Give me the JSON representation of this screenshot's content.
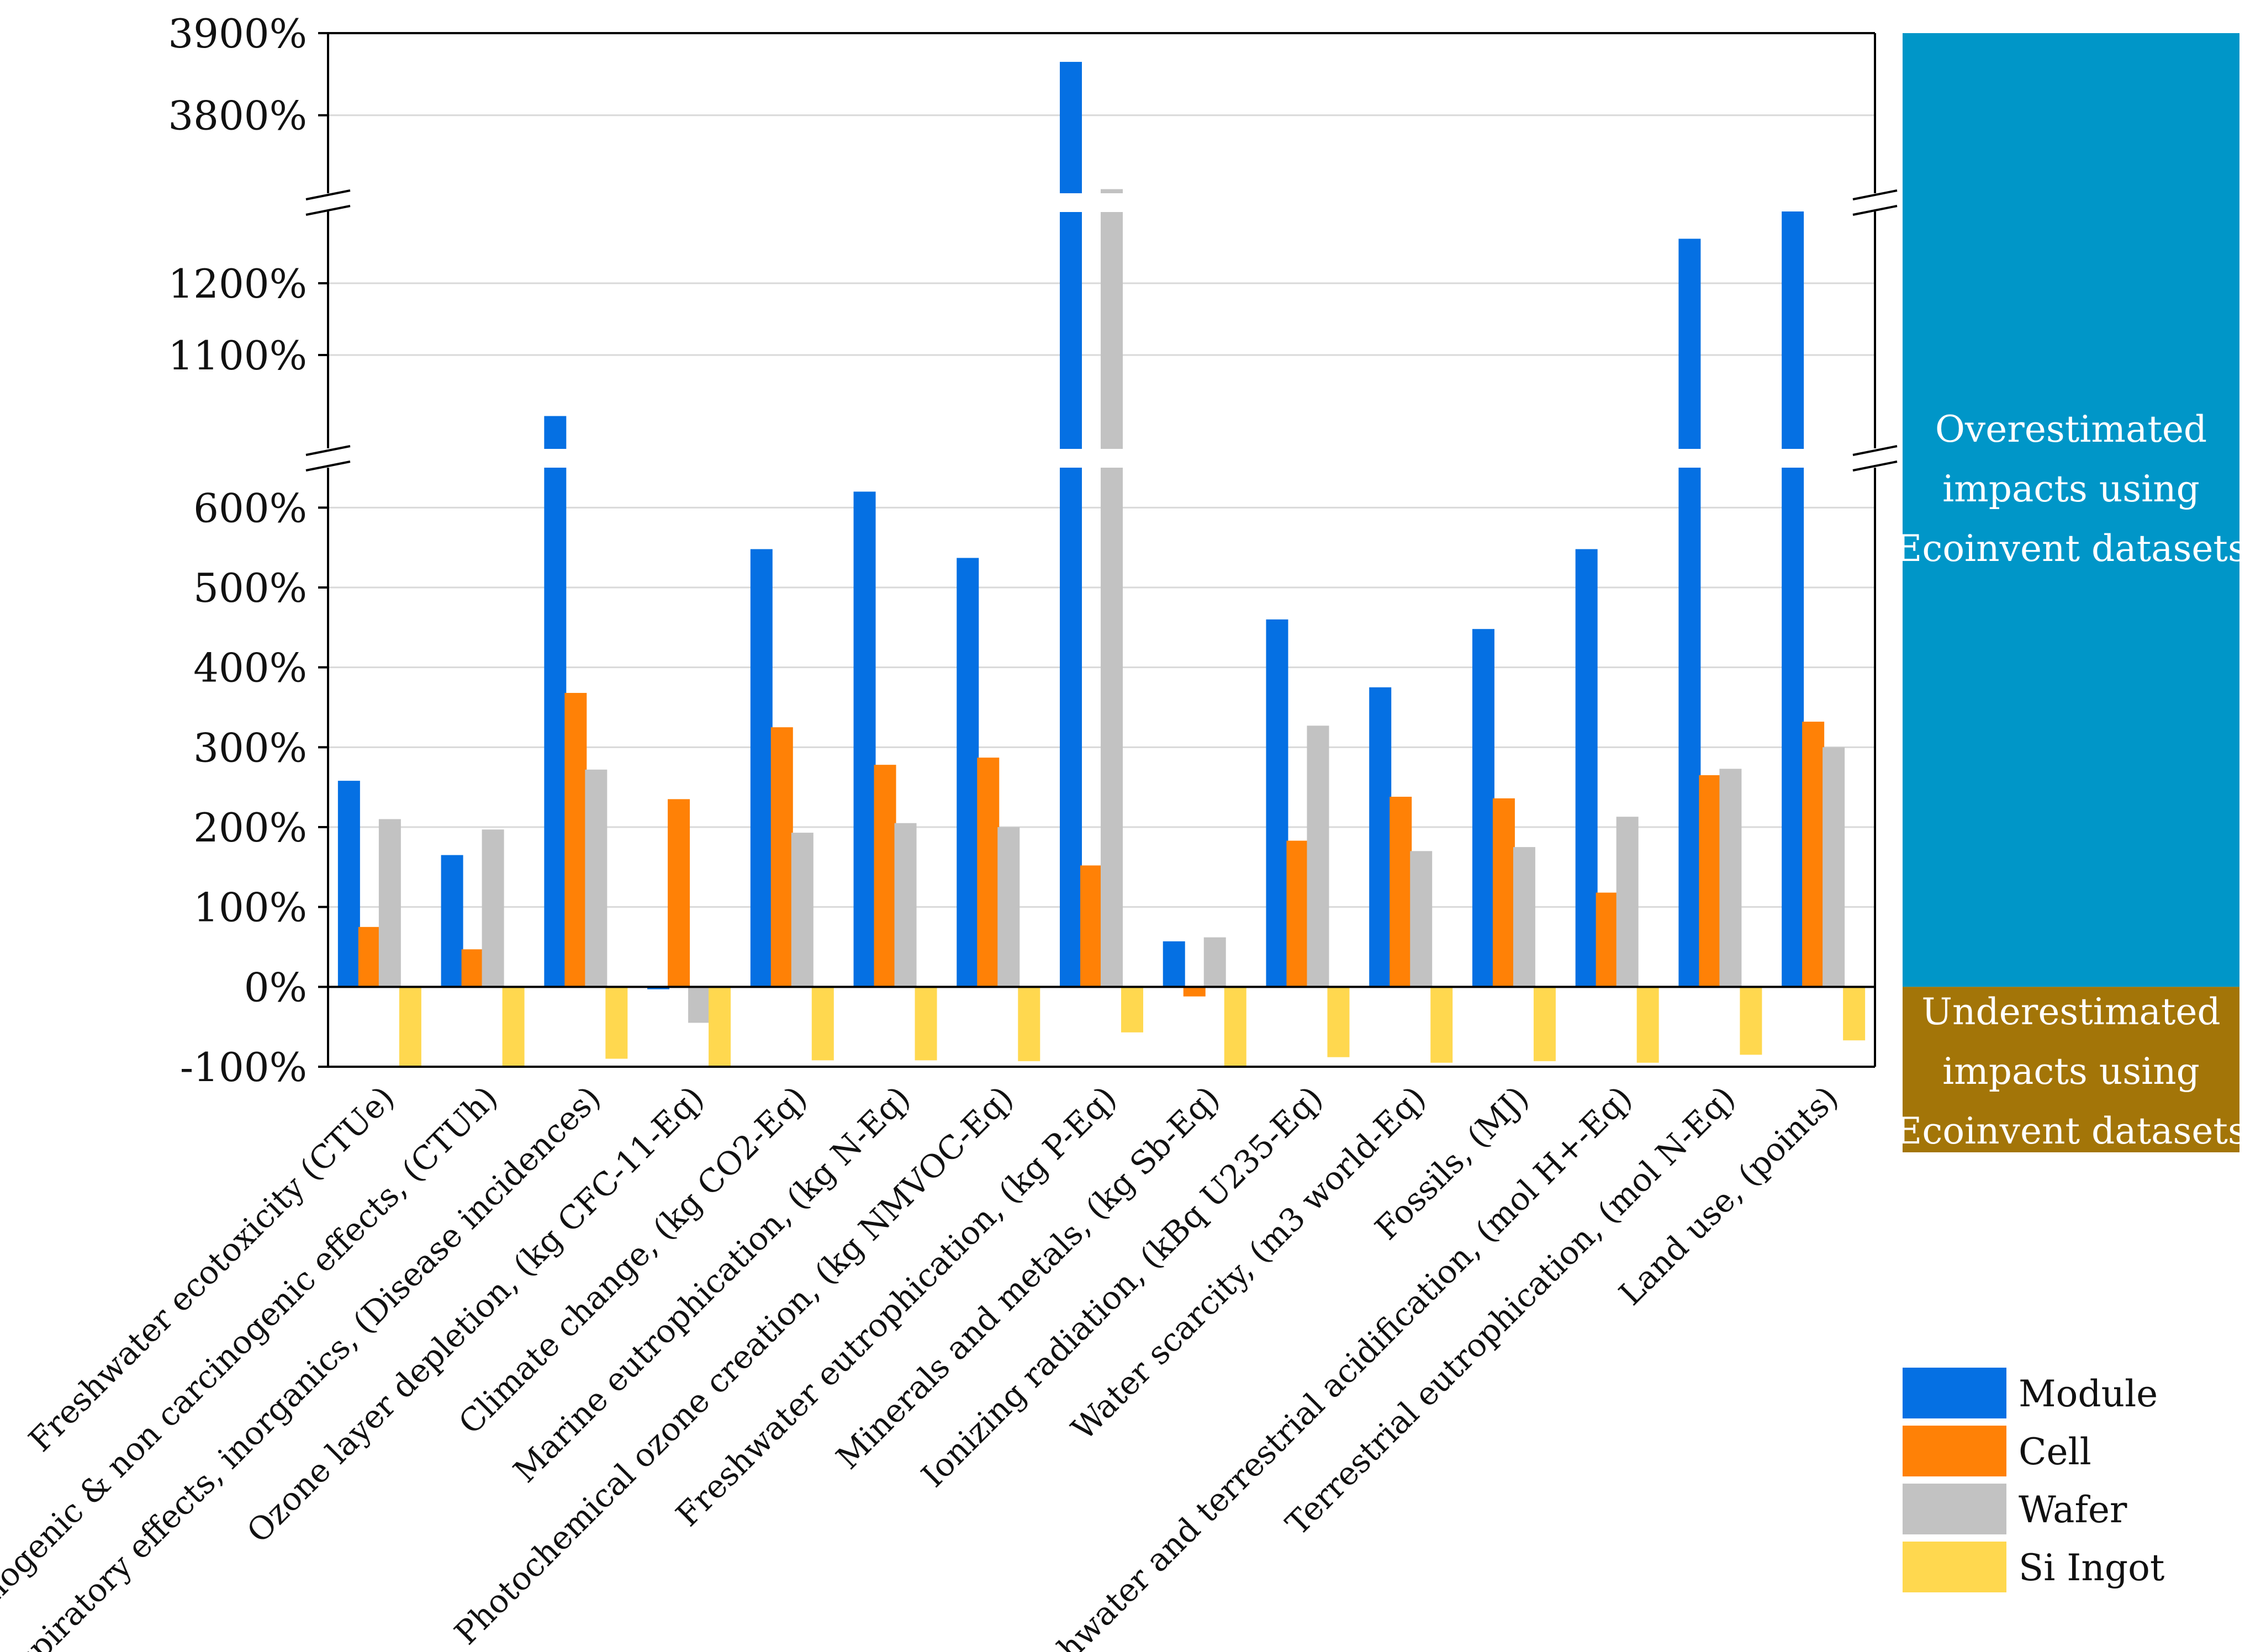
{
  "chart_data": {
    "type": "bar",
    "ylabel": "",
    "xlabel": "",
    "y_ticks": [
      "3900%",
      "3800%",
      "1200%",
      "1100%",
      "600%",
      "500%",
      "400%",
      "300%",
      "200%",
      "100%",
      "0%",
      "-100%"
    ],
    "y_segments": [
      {
        "range": [
          -100,
          650
        ],
        "ticks": [
          -100,
          0,
          100,
          200,
          300,
          400,
          500,
          600
        ]
      },
      {
        "range": [
          970,
          1300
        ],
        "ticks": [
          1100,
          1200
        ]
      },
      {
        "range": [
          3705,
          3900
        ],
        "ticks": [
          3800,
          3900
        ]
      }
    ],
    "categories": [
      "Freshwater ecotoxicity (CTUe)",
      "Carcinogenic & non carcinogenic effects, (CTUh)",
      "Respiratory effects, inorganics, (Disease incidences)",
      "Ozone layer depletion, (kg CFC-11-Eq)",
      "Climate change, (kg CO2-Eq)",
      "Marine eutrophication, (kg N-Eq)",
      "Photochemical ozone creation, (kg NMVOC-Eq)",
      "Freshwater eutrophication, (kg P-Eq)",
      "Minerals and metals, (kg Sb-Eq)",
      "Ionizing radiation, (kBq U235-Eq)",
      "Water scarcity, (m3 world-Eq)",
      "Fossils, (MJ)",
      "Freshwater and terrestrial acidification, (mol H+-Eq)",
      "Terrestrial eutrophication, (mol N-Eq)",
      "Land use, (points)"
    ],
    "series": [
      {
        "name": "Module",
        "color": "#0570E3",
        "values": [
          258,
          165,
          1015,
          -3,
          548,
          620,
          537,
          3865,
          57,
          460,
          375,
          448,
          548,
          1262,
          1300
        ]
      },
      {
        "name": "Cell",
        "color": "#FF8106",
        "values": [
          75,
          47,
          368,
          235,
          325,
          278,
          287,
          152,
          -12,
          183,
          238,
          236,
          118,
          265,
          332
        ]
      },
      {
        "name": "Wafer",
        "color": "#C2C2C2",
        "values": [
          210,
          197,
          272,
          -45,
          193,
          205,
          200,
          3710,
          62,
          327,
          170,
          175,
          213,
          273,
          300
        ]
      },
      {
        "name": "Si Ingot",
        "color": "#FFD84F",
        "values": [
          -100,
          -100,
          -90,
          -100,
          -92,
          -92,
          -93,
          -57,
          -100,
          -88,
          -95,
          -93,
          -95,
          -85,
          -67
        ]
      }
    ],
    "bands": [
      {
        "label_lines": [
          "Overestimated",
          "impacts using",
          "Ecoinvent datasets"
        ],
        "color": "#0096C8",
        "range": "0% and above"
      },
      {
        "label_lines": [
          "Underestimated",
          "impacts using",
          "Ecoinvent datasets"
        ],
        "color": "#A37508",
        "range": "below 0%"
      }
    ],
    "legend_position": "bottom-right"
  }
}
